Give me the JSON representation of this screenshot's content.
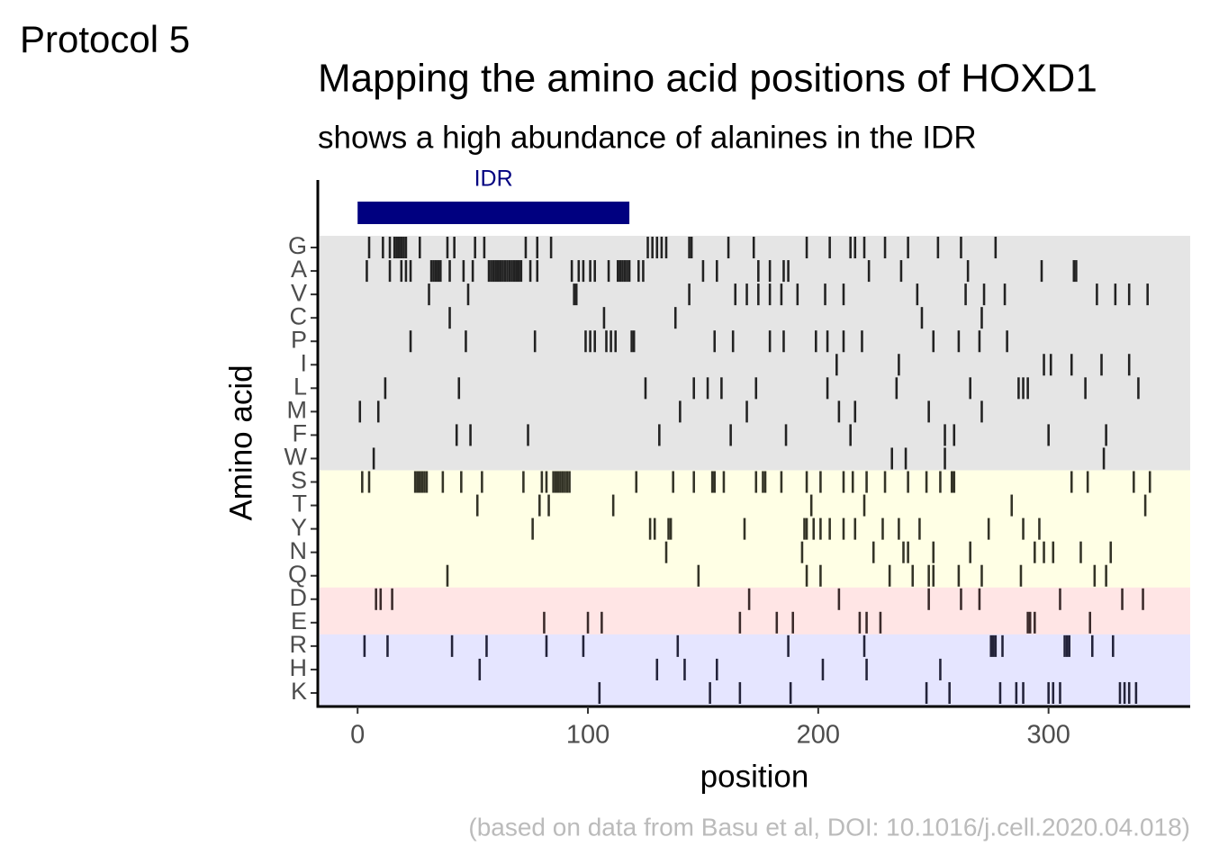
{
  "tag": "Protocol 5",
  "chart_data": {
    "type": "strip",
    "title": "Mapping the amino acid positions of HOXD1",
    "subtitle": "shows a high abundance of alanines in the IDR",
    "x_label": "position",
    "y_label": "Amino acid",
    "caption": "(based on data from Basu et al, DOI: 10.1016/j.cell.2020.04.018)",
    "xlim": [
      -16.5,
      361.5
    ],
    "xticks": [
      0,
      100,
      200,
      300
    ],
    "annotation": {
      "text": "IDR",
      "start": 0,
      "end": 118,
      "color": "#000080"
    },
    "series": [
      {
        "name": "G",
        "color": "#222222",
        "background": "#e5e5e5",
        "values": [
          5,
          11,
          14,
          16,
          17,
          18,
          19,
          20,
          21,
          27,
          39,
          42,
          51,
          55,
          73,
          78,
          84,
          126,
          128,
          130,
          132,
          134,
          144,
          145,
          161,
          172,
          195,
          205,
          214,
          216,
          220,
          229,
          239,
          252,
          262,
          277
        ]
      },
      {
        "name": "A",
        "color": "#222222",
        "background": "#e5e5e5",
        "values": [
          4,
          14,
          19,
          21,
          23,
          32,
          33,
          34,
          35,
          36,
          40,
          46,
          50,
          57,
          58,
          59,
          60,
          61,
          62,
          63,
          64,
          65,
          66,
          67,
          68,
          69,
          70,
          71,
          75,
          78,
          93,
          96,
          98,
          101,
          103,
          109,
          113,
          114,
          115,
          116,
          117,
          118,
          122,
          124,
          150,
          156,
          174,
          179,
          185,
          187,
          222,
          236,
          265,
          297,
          311,
          312
        ]
      },
      {
        "name": "V",
        "color": "#222222",
        "background": "#e5e5e5",
        "values": [
          31,
          48,
          94,
          95,
          144,
          164,
          169,
          174,
          179,
          184,
          191,
          203,
          211,
          243,
          264,
          272,
          281,
          321,
          329,
          335,
          343
        ]
      },
      {
        "name": "C",
        "color": "#222222",
        "background": "#e5e5e5",
        "values": [
          40,
          107,
          138,
          245,
          271
        ]
      },
      {
        "name": "P",
        "color": "#222222",
        "background": "#e5e5e5",
        "values": [
          23,
          47,
          77,
          99,
          101,
          103,
          108,
          110,
          112,
          119,
          120,
          155,
          163,
          179,
          185,
          199,
          204,
          211,
          219,
          250,
          261,
          270,
          282
        ]
      },
      {
        "name": "I",
        "color": "#222222",
        "background": "#e5e5e5",
        "values": [
          208,
          235,
          298,
          301,
          310,
          323,
          335
        ]
      },
      {
        "name": "L",
        "color": "#222222",
        "background": "#e5e5e5",
        "values": [
          12,
          44,
          125,
          146,
          152,
          158,
          173,
          204,
          234,
          266,
          287,
          289,
          291,
          316,
          339
        ]
      },
      {
        "name": "M",
        "color": "#222222",
        "background": "#e5e5e5",
        "values": [
          1,
          9,
          140,
          169,
          209,
          216,
          248,
          271
        ]
      },
      {
        "name": "F",
        "color": "#222222",
        "background": "#e5e5e5",
        "values": [
          43,
          49,
          74,
          131,
          162,
          186,
          214,
          255,
          259,
          300,
          325
        ]
      },
      {
        "name": "W",
        "color": "#222222",
        "background": "#e5e5e5",
        "values": [
          7,
          232,
          238,
          255,
          324
        ]
      },
      {
        "name": "S",
        "color": "#333326",
        "background": "#ffffe5",
        "values": [
          2,
          5,
          25,
          26,
          27,
          28,
          29,
          30,
          37,
          45,
          54,
          72,
          80,
          82,
          85,
          86,
          87,
          88,
          89,
          90,
          91,
          92,
          121,
          137,
          146,
          154,
          155,
          159,
          173,
          176,
          177,
          184,
          195,
          201,
          211,
          215,
          221,
          229,
          239,
          247,
          253,
          258,
          259,
          310,
          317,
          337,
          344
        ]
      },
      {
        "name": "T",
        "color": "#333326",
        "background": "#ffffe5",
        "values": [
          52,
          79,
          83,
          111,
          197,
          220,
          284,
          342
        ]
      },
      {
        "name": "Y",
        "color": "#333326",
        "background": "#ffffe5",
        "values": [
          76,
          127,
          129,
          135,
          136,
          168,
          194,
          195,
          198,
          201,
          205,
          211,
          216,
          228,
          235,
          244,
          274,
          289,
          296
        ]
      },
      {
        "name": "N",
        "color": "#333326",
        "background": "#ffffe5",
        "values": [
          134,
          193,
          224,
          237,
          239,
          250,
          266,
          294,
          298,
          302,
          314,
          327
        ]
      },
      {
        "name": "Q",
        "color": "#333326",
        "background": "#ffffe5",
        "values": [
          39,
          148,
          195,
          201,
          231,
          241,
          248,
          250,
          261,
          271,
          288,
          320,
          325
        ]
      },
      {
        "name": "D",
        "color": "#3a2a2a",
        "background": "#ffe5e5",
        "values": [
          8,
          10,
          15,
          170,
          209,
          248,
          262,
          270,
          305,
          332,
          341
        ]
      },
      {
        "name": "E",
        "color": "#3a2a2a",
        "background": "#ffe5e5",
        "values": [
          81,
          100,
          106,
          166,
          182,
          189,
          218,
          221,
          227,
          291,
          292,
          294,
          318
        ]
      },
      {
        "name": "R",
        "color": "#23233a",
        "background": "#e5e5ff",
        "values": [
          3,
          13,
          41,
          56,
          82,
          98,
          139,
          187,
          220,
          275,
          276,
          277,
          280,
          307,
          308,
          309,
          319,
          328
        ]
      },
      {
        "name": "H",
        "color": "#23233a",
        "background": "#e5e5ff",
        "values": [
          53,
          130,
          142,
          156,
          202,
          221,
          253
        ]
      },
      {
        "name": "K",
        "color": "#23233a",
        "background": "#e5e5ff",
        "values": [
          105,
          153,
          166,
          188,
          247,
          257,
          279,
          286,
          289,
          300,
          302,
          305,
          331,
          333,
          335,
          338
        ]
      }
    ]
  }
}
